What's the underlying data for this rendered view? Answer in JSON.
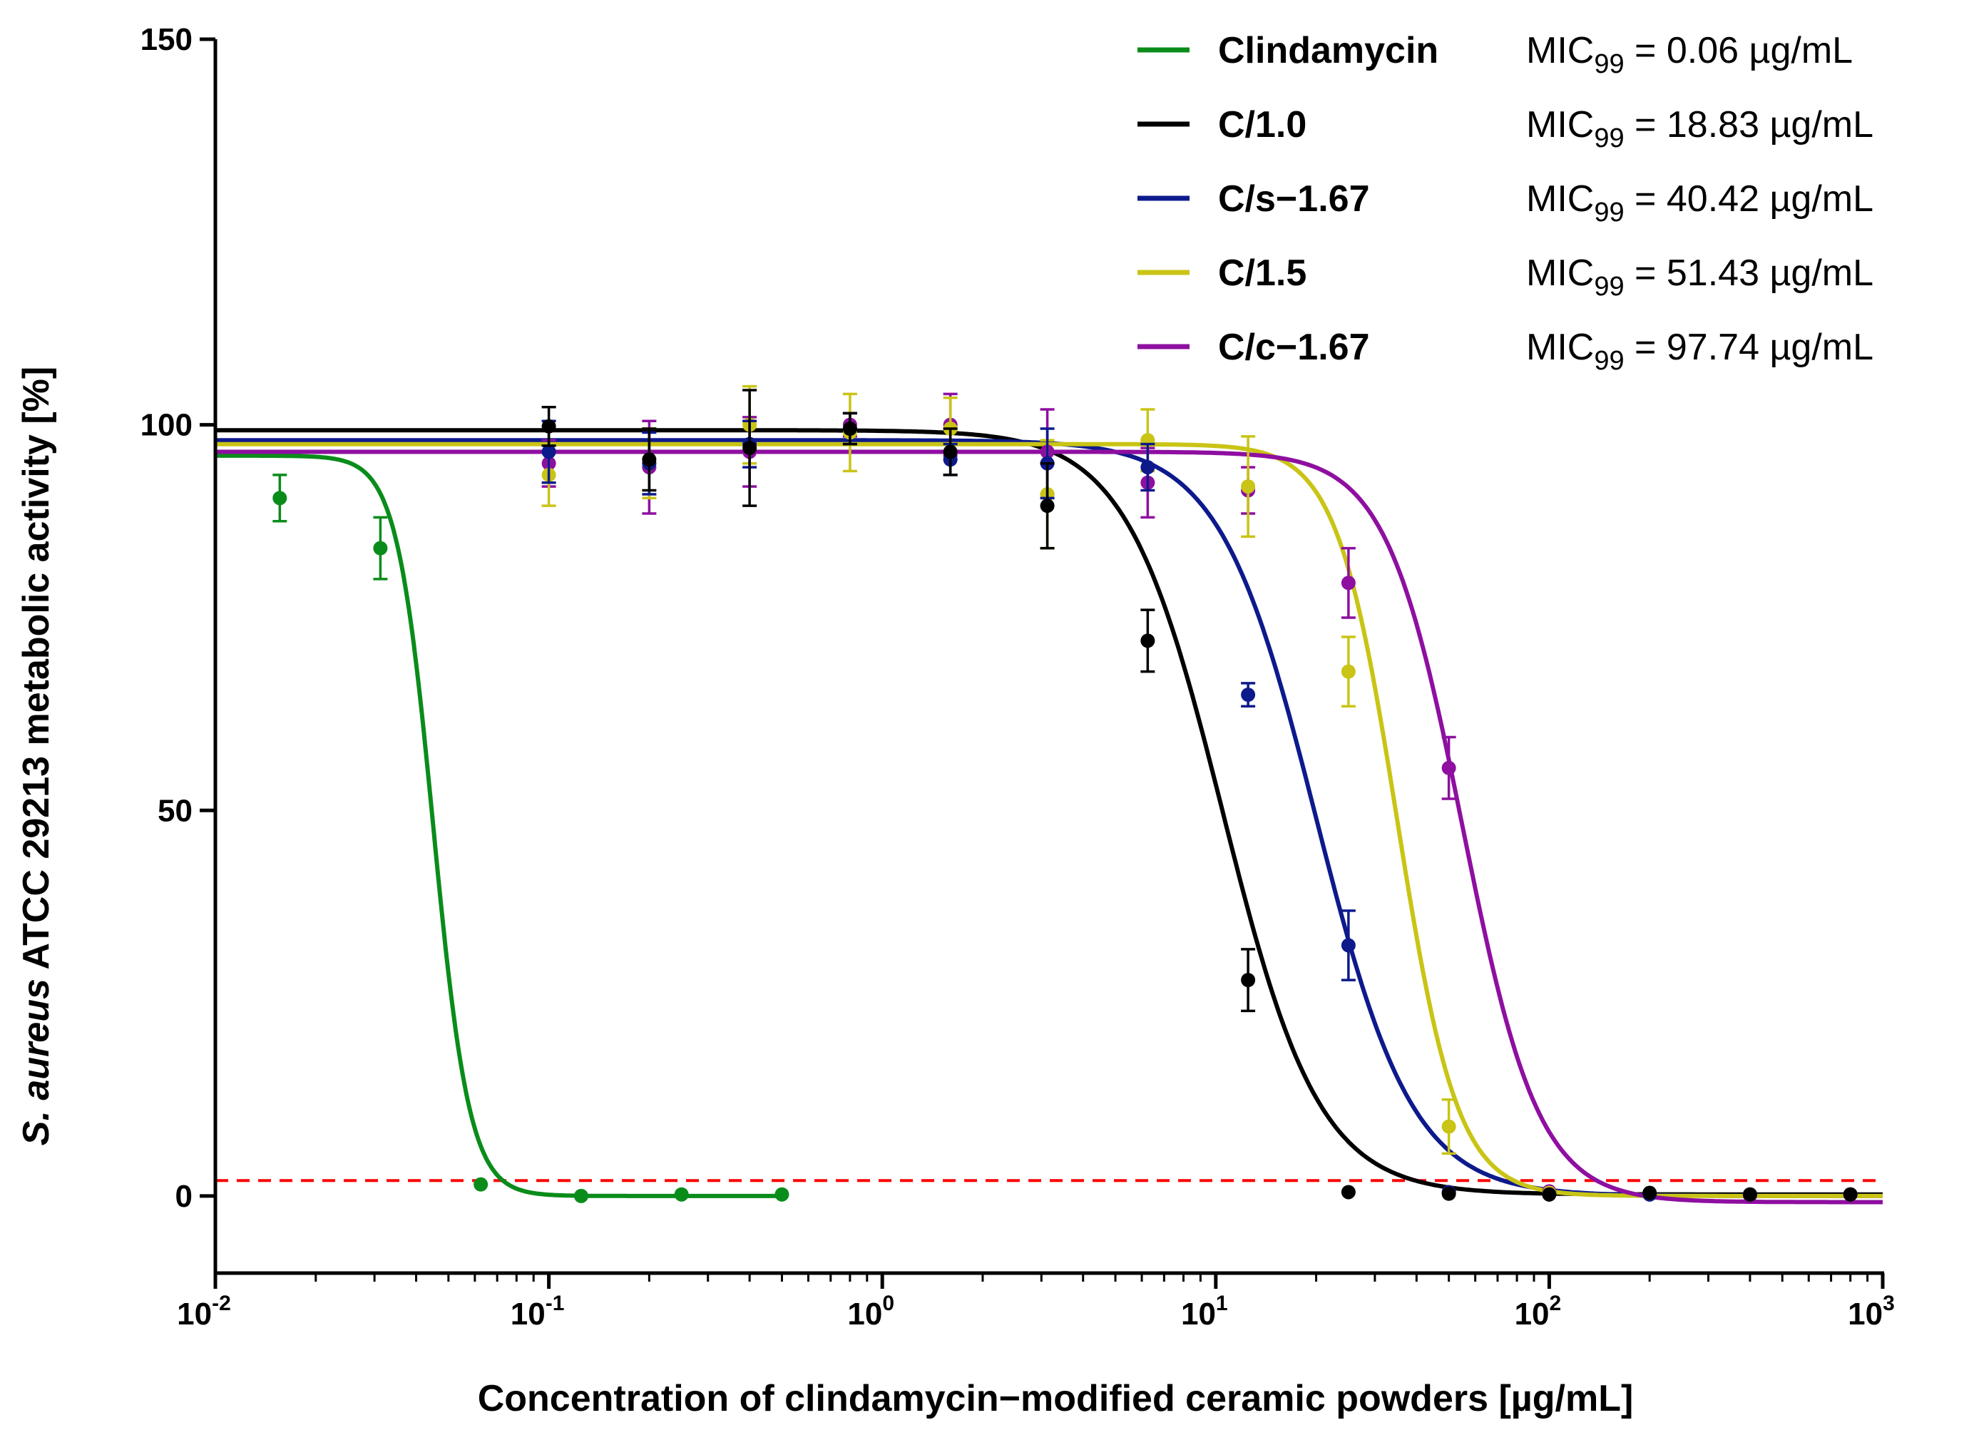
{
  "chart_data": {
    "type": "line",
    "title": "",
    "xscale": "log",
    "xlim": [
      0.01,
      1000
    ],
    "ylim": [
      -10,
      150
    ],
    "x_ticks": [
      {
        "value": 0.01,
        "base": "10",
        "exp": "-2"
      },
      {
        "value": 0.1,
        "base": "10",
        "exp": "-1"
      },
      {
        "value": 1,
        "base": "10",
        "exp": "0"
      },
      {
        "value": 10,
        "base": "10",
        "exp": "1"
      },
      {
        "value": 100,
        "base": "10",
        "exp": "2"
      },
      {
        "value": 1000,
        "base": "10",
        "exp": "3"
      }
    ],
    "y_ticks": [
      {
        "value": 0,
        "label": "0"
      },
      {
        "value": 50,
        "label": "50"
      },
      {
        "value": 100,
        "label": "100"
      },
      {
        "value": 150,
        "label": "150"
      }
    ],
    "xlabel": "Concentration of clindamycin−modified ceramic powders [µg/mL]",
    "ylabel": {
      "species": "S. aureus",
      "rest": " ATCC 29213 metabolic activity [%]"
    },
    "threshold": {
      "y": 2,
      "color": "#ff0000",
      "style": "dashed"
    },
    "series": [
      {
        "name": "Clindamycin",
        "color": "#0a8c1a",
        "mic_prefix": "MIC",
        "mic_sub": "99",
        "mic_value": " = 0.06 µg/mL",
        "fit": {
          "top": 96,
          "bottom": 0,
          "ec50": 0.045,
          "hill": 8,
          "xmin": 0.01,
          "xmax": 0.5
        },
        "points": [
          {
            "x": 0.0156,
            "y": 90.5,
            "err": 3
          },
          {
            "x": 0.03125,
            "y": 84,
            "err": 4
          },
          {
            "x": 0.0625,
            "y": 1.5,
            "err": 0
          },
          {
            "x": 0.125,
            "y": 0,
            "err": 0
          },
          {
            "x": 0.25,
            "y": 0.2,
            "err": 0
          },
          {
            "x": 0.5,
            "y": 0.2,
            "err": 0
          }
        ]
      },
      {
        "name": "C/1.0",
        "color": "#000000",
        "mic_prefix": "MIC",
        "mic_sub": "99",
        "mic_value": " = 18.83 µg/mL",
        "fit": {
          "top": 99.3,
          "bottom": 0.2,
          "ec50": 10.5,
          "hill": 3.0,
          "xmin": 0.01,
          "xmax": 1000
        },
        "points": [
          {
            "x": 0.1,
            "y": 99.8,
            "err": 2.5
          },
          {
            "x": 0.2,
            "y": 95.5,
            "err": 4
          },
          {
            "x": 0.4,
            "y": 97,
            "err": 7.5
          },
          {
            "x": 0.8,
            "y": 99.5,
            "err": 2
          },
          {
            "x": 1.6,
            "y": 96.5,
            "err": 3
          },
          {
            "x": 3.125,
            "y": 89.5,
            "err": 5.5
          },
          {
            "x": 6.25,
            "y": 72,
            "err": 4
          },
          {
            "x": 12.5,
            "y": 28,
            "err": 4
          },
          {
            "x": 25,
            "y": 0.5,
            "err": 0
          },
          {
            "x": 50,
            "y": 0.3,
            "err": 0
          },
          {
            "x": 100,
            "y": 0.2,
            "err": 0
          },
          {
            "x": 200,
            "y": 0.4,
            "err": 0
          },
          {
            "x": 400,
            "y": 0.2,
            "err": 0
          },
          {
            "x": 800,
            "y": 0.2,
            "err": 0
          }
        ]
      },
      {
        "name": "C/s−1.67",
        "color": "#0d1a8c",
        "mic_prefix": "MIC",
        "mic_sub": "99",
        "mic_value": " = 40.42 µg/mL",
        "fit": {
          "top": 98,
          "bottom": 0,
          "ec50": 20,
          "hill": 3.0,
          "xmin": 0.01,
          "xmax": 1000
        },
        "points": [
          {
            "x": 0.1,
            "y": 96.5,
            "err": 4
          },
          {
            "x": 0.2,
            "y": 95,
            "err": 4
          },
          {
            "x": 0.4,
            "y": 97.5,
            "err": 3
          },
          {
            "x": 0.8,
            "y": 99.5,
            "err": 2
          },
          {
            "x": 1.6,
            "y": 95.5,
            "err": 2
          },
          {
            "x": 3.125,
            "y": 95,
            "err": 4.5
          },
          {
            "x": 6.25,
            "y": 94.5,
            "err": 3
          },
          {
            "x": 12.5,
            "y": 65,
            "err": 1.5
          },
          {
            "x": 25,
            "y": 32.5,
            "err": 4.5
          },
          {
            "x": 50,
            "y": 0.5,
            "err": 0
          },
          {
            "x": 100,
            "y": 0.2,
            "err": 0
          },
          {
            "x": 200,
            "y": 0.2,
            "err": 0
          },
          {
            "x": 400,
            "y": 0.2,
            "err": 0
          },
          {
            "x": 800,
            "y": 0.2,
            "err": 0
          }
        ]
      },
      {
        "name": "C/1.5",
        "color": "#c9c415",
        "mic_prefix": "MIC",
        "mic_sub": "99",
        "mic_value": " = 51.43 µg/mL",
        "fit": {
          "top": 97.5,
          "bottom": 0,
          "ec50": 35,
          "hill": 4.8,
          "xmin": 0.01,
          "xmax": 1000
        },
        "points": [
          {
            "x": 0.1,
            "y": 93.5,
            "err": 4
          },
          {
            "x": 0.2,
            "y": 95,
            "err": 4.5
          },
          {
            "x": 0.4,
            "y": 100,
            "err": 5
          },
          {
            "x": 0.8,
            "y": 99,
            "err": 5
          },
          {
            "x": 1.6,
            "y": 99.5,
            "err": 4
          },
          {
            "x": 3.125,
            "y": 91,
            "err": 7
          },
          {
            "x": 6.25,
            "y": 98,
            "err": 4
          },
          {
            "x": 12.5,
            "y": 92,
            "err": 6.5
          },
          {
            "x": 25,
            "y": 68,
            "err": 4.5
          },
          {
            "x": 50,
            "y": 9,
            "err": 3.5
          },
          {
            "x": 100,
            "y": 0.4,
            "err": 0
          },
          {
            "x": 200,
            "y": 0.2,
            "err": 0
          },
          {
            "x": 400,
            "y": 0.2,
            "err": 0
          },
          {
            "x": 800,
            "y": 0.2,
            "err": 0
          }
        ]
      },
      {
        "name": "C/c−1.67",
        "color": "#8e0fa0",
        "mic_prefix": "MIC",
        "mic_sub": "99",
        "mic_value": " = 97.74 µg/mL",
        "fit": {
          "top": 96.5,
          "bottom": -0.8,
          "ec50": 55,
          "hill": 3.8,
          "xmin": 0.01,
          "xmax": 1000
        },
        "points": [
          {
            "x": 0.1,
            "y": 95,
            "err": 3
          },
          {
            "x": 0.2,
            "y": 94.5,
            "err": 6
          },
          {
            "x": 0.4,
            "y": 96.5,
            "err": 4.5
          },
          {
            "x": 0.8,
            "y": 100,
            "err": 1.5
          },
          {
            "x": 1.6,
            "y": 100,
            "err": 4
          },
          {
            "x": 3.125,
            "y": 96.5,
            "err": 5.5
          },
          {
            "x": 6.25,
            "y": 92.5,
            "err": 4.5
          },
          {
            "x": 12.5,
            "y": 91.5,
            "err": 3
          },
          {
            "x": 25,
            "y": 79.5,
            "err": 4.5
          },
          {
            "x": 50,
            "y": 55.5,
            "err": 4
          },
          {
            "x": 100,
            "y": 0.6,
            "err": 0
          },
          {
            "x": 200,
            "y": 0.2,
            "err": 0
          },
          {
            "x": 400,
            "y": 0.1,
            "err": 0
          },
          {
            "x": 800,
            "y": 0.2,
            "err": 0
          }
        ]
      }
    ]
  }
}
